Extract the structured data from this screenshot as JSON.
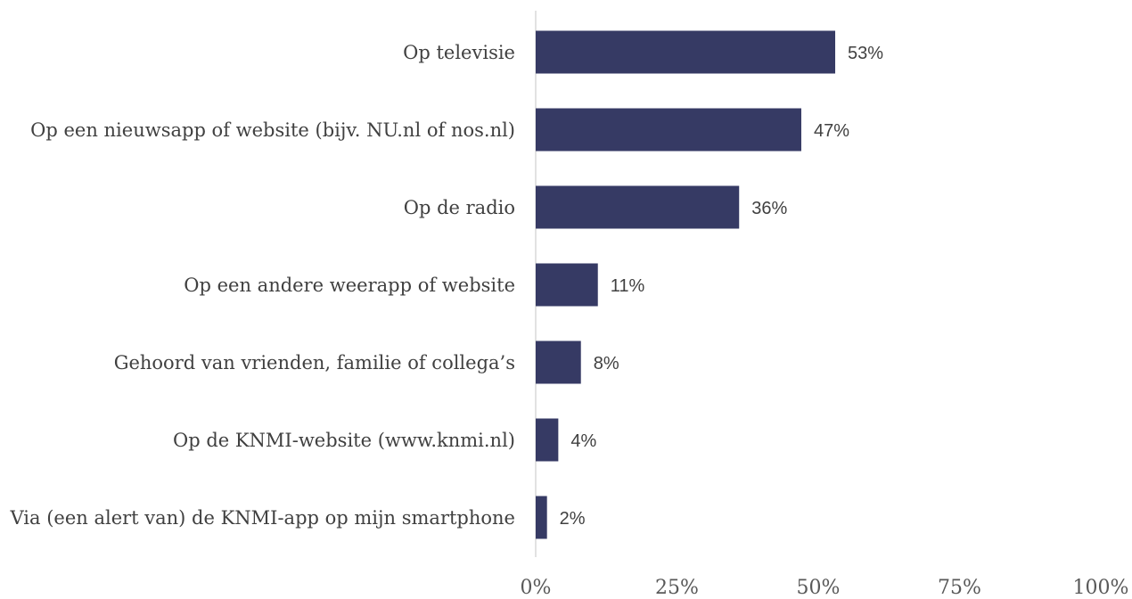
{
  "chart_data": {
    "type": "bar",
    "orientation": "horizontal",
    "categories": [
      "Op televisie",
      "Op een nieuwsapp of website (bijv. NU.nl of nos.nl)",
      "Op de radio",
      "Op een andere weerapp of website",
      "Gehoord van vrienden, familie of collega’s",
      "Op de KNMI-website (www.knmi.nl)",
      "Via (een alert van) de KNMI-app op mijn smartphone"
    ],
    "values": [
      53,
      47,
      36,
      11,
      8,
      4,
      2
    ],
    "value_labels": [
      "53%",
      "47%",
      "36%",
      "11%",
      "8%",
      "4%",
      "2%"
    ],
    "color": "#363a64",
    "xlim": [
      0,
      100
    ],
    "xticks": [
      {
        "value": 0,
        "label": "0%"
      },
      {
        "value": 25,
        "label": "25%"
      },
      {
        "value": 50,
        "label": "50%"
      },
      {
        "value": 75,
        "label": "75%"
      },
      {
        "value": 100,
        "label": "100%"
      }
    ],
    "grid": false
  }
}
